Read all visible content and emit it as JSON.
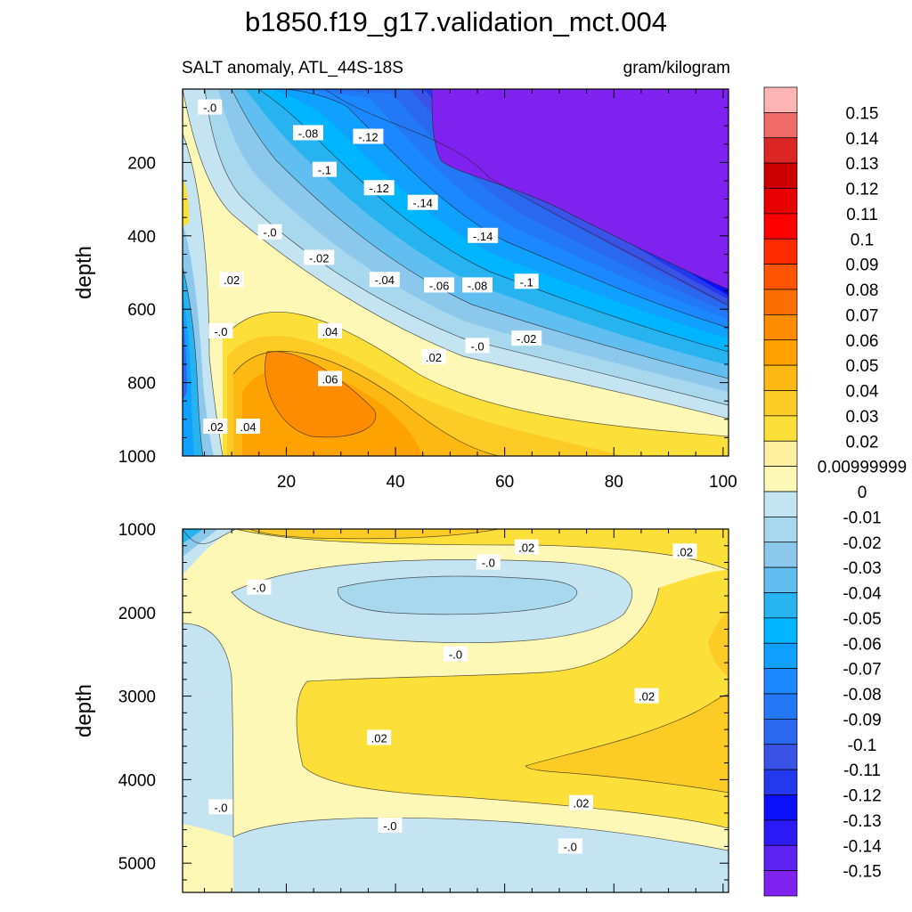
{
  "chart_data": {
    "type": "heatmap",
    "title": "b1850.f19_g17.validation_mct.004",
    "subtitle_left": "SALT anomaly, ATL_44S-18S",
    "subtitle_right": "gram/kilogram",
    "ylabel": "depth",
    "upper_panel": {
      "x_ticks": [
        "20",
        "40",
        "60",
        "80",
        "100"
      ],
      "y_ticks": [
        "200",
        "400",
        "600",
        "800",
        "1000"
      ],
      "ylim": [
        0,
        1000
      ],
      "xlim": [
        1,
        101
      ],
      "contour_labels": [
        {
          "text": "-.0",
          "x": 6,
          "y": 50
        },
        {
          "text": "-.08",
          "x": 24,
          "y": 120
        },
        {
          "text": "-.12",
          "x": 35,
          "y": 130
        },
        {
          "text": "-.1",
          "x": 27,
          "y": 220
        },
        {
          "text": "-.12",
          "x": 37,
          "y": 270
        },
        {
          "text": "-.14",
          "x": 45,
          "y": 310
        },
        {
          "text": "-.14",
          "x": 56,
          "y": 400
        },
        {
          "text": "-.0",
          "x": 17,
          "y": 390
        },
        {
          "text": "-.02",
          "x": 26,
          "y": 460
        },
        {
          "text": "-.04",
          "x": 38,
          "y": 520
        },
        {
          "text": "-.06",
          "x": 48,
          "y": 535
        },
        {
          "text": "-.08",
          "x": 55,
          "y": 535
        },
        {
          "text": "-.1",
          "x": 64,
          "y": 525
        },
        {
          "text": ".02",
          "x": 10,
          "y": 520
        },
        {
          "text": "-.0",
          "x": 8,
          "y": 660
        },
        {
          "text": ".04",
          "x": 28,
          "y": 660
        },
        {
          "text": ".02",
          "x": 47,
          "y": 730
        },
        {
          "text": "-.0",
          "x": 55,
          "y": 700
        },
        {
          "text": "-.02",
          "x": 64,
          "y": 680
        },
        {
          "text": ".06",
          "x": 28,
          "y": 790
        },
        {
          "text": ".02",
          "x": 7,
          "y": 920
        },
        {
          "text": ".04",
          "x": 13,
          "y": 920
        }
      ]
    },
    "lower_panel": {
      "y_ticks": [
        "1000",
        "2000",
        "3000",
        "4000",
        "5000"
      ],
      "ylim": [
        1000,
        5350
      ],
      "contour_labels": [
        {
          "text": ".02",
          "x": 64,
          "y": 1220
        },
        {
          "text": "-.0",
          "x": 57,
          "y": 1400
        },
        {
          "text": ".02",
          "x": 93,
          "y": 1270
        },
        {
          "text": "-.0",
          "x": 15,
          "y": 1700
        },
        {
          "text": "-.0",
          "x": 51,
          "y": 2500
        },
        {
          "text": ".02",
          "x": 86,
          "y": 3000
        },
        {
          "text": ".02",
          "x": 37,
          "y": 3500
        },
        {
          "text": "-.0",
          "x": 8,
          "y": 4330
        },
        {
          "text": ".02",
          "x": 74,
          "y": 4280
        },
        {
          "text": "-.0",
          "x": 39,
          "y": 4550
        },
        {
          "text": "-.0",
          "x": 72,
          "y": 4800
        }
      ]
    },
    "colorbar": {
      "levels": [
        "0.15",
        "0.14",
        "0.13",
        "0.12",
        "0.11",
        "0.1",
        "0.09",
        "0.08",
        "0.07",
        "0.06",
        "0.05",
        "0.04",
        "0.03",
        "0.02",
        "0.00999999",
        "0",
        "-0.01",
        "-0.02",
        "-0.03",
        "-0.04",
        "-0.05",
        "-0.06",
        "-0.07",
        "-0.08",
        "-0.09",
        "-0.1",
        "-0.11",
        "-0.12",
        "-0.13",
        "-0.14",
        "-0.15"
      ],
      "colors": [
        "#fdb5b5",
        "#f06a6a",
        "#dc2626",
        "#cc0000",
        "#e60000",
        "#ff0000",
        "#ff2a00",
        "#ff5500",
        "#fb6e00",
        "#fd8c00",
        "#fea200",
        "#fdb814",
        "#fdcb26",
        "#fddf3a",
        "#fff0a0",
        "#fdf8b6",
        "#c4e4f2",
        "#a8d8ee",
        "#8cc8ec",
        "#60bff0",
        "#27b3f0",
        "#00b5ff",
        "#10a0ff",
        "#1c88ff",
        "#2378f6",
        "#2a68f0",
        "#3a52e6",
        "#2438ee",
        "#0c10fa",
        "#2b1af6",
        "#5b22f2",
        "#7f22f0"
      ]
    }
  }
}
